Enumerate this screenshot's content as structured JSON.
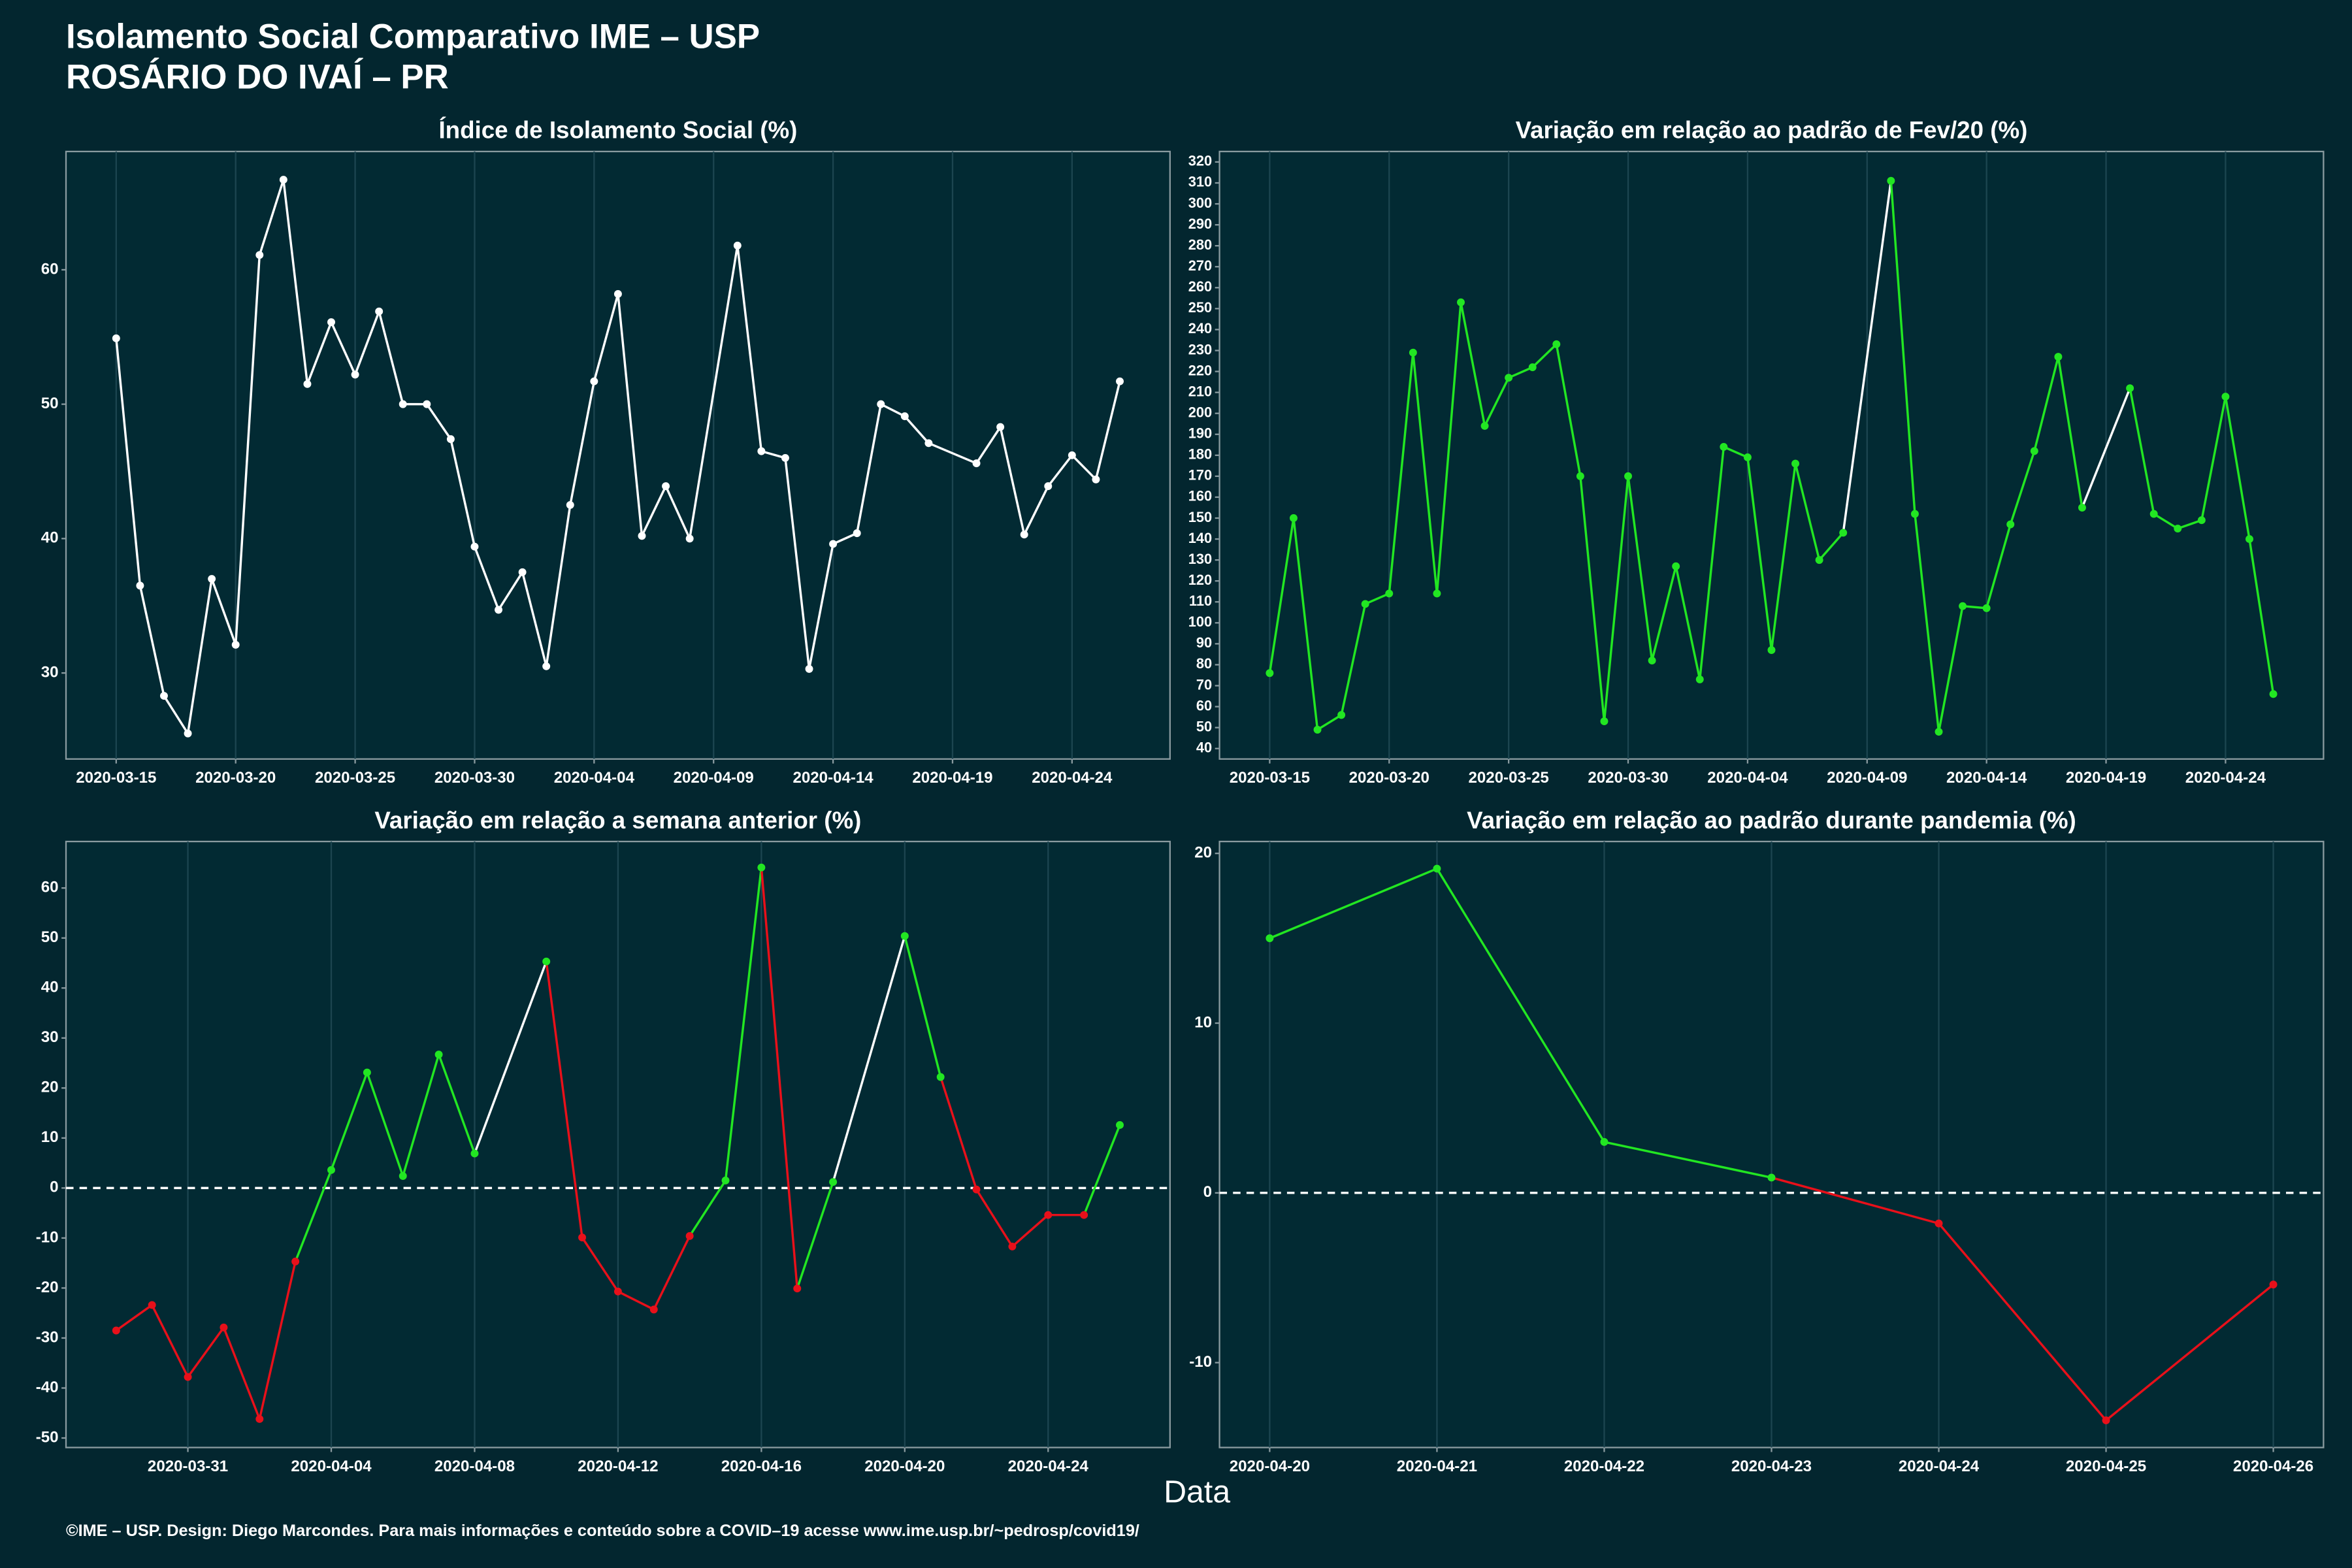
{
  "title": "Isolamento Social Comparativo IME – USP",
  "subtitle": "ROSÁRIO DO IVAÍ – PR",
  "x_label": "Data",
  "footer": "©IME – USP. Design: Diego Marcondes. Para mais informações e conteúdo sobre a COVID–19 acesse www.ime.usp.br/~pedrosp/covid19/",
  "chart_data": [
    {
      "type": "line",
      "title": "Índice de Isolamento Social (%)",
      "color": "#ffffff",
      "x": [
        "2020-03-15",
        "2020-03-16",
        "2020-03-17",
        "2020-03-18",
        "2020-03-19",
        "2020-03-20",
        "2020-03-21",
        "2020-03-22",
        "2020-03-23",
        "2020-03-24",
        "2020-03-25",
        "2020-03-26",
        "2020-03-27",
        "2020-03-28",
        "2020-03-29",
        "2020-03-30",
        "2020-03-31",
        "2020-04-01",
        "2020-04-02",
        "2020-04-03",
        "2020-04-04",
        "2020-04-05",
        "2020-04-06",
        "2020-04-07",
        "2020-04-08",
        "2020-04-10",
        "2020-04-11",
        "2020-04-12",
        "2020-04-13",
        "2020-04-14",
        "2020-04-15",
        "2020-04-16",
        "2020-04-17",
        "2020-04-18",
        "2020-04-20",
        "2020-04-21",
        "2020-04-22",
        "2020-04-23",
        "2020-04-24",
        "2020-04-25",
        "2020-04-26"
      ],
      "values": [
        54.9,
        36.5,
        28.3,
        25.5,
        37.0,
        32.1,
        61.1,
        66.7,
        51.5,
        56.1,
        52.2,
        56.9,
        50.0,
        50.0,
        47.4,
        39.4,
        34.7,
        37.5,
        30.5,
        42.5,
        51.7,
        58.2,
        40.2,
        43.9,
        40.0,
        61.8,
        46.5,
        46.0,
        30.3,
        39.6,
        40.4,
        50.0,
        49.1,
        47.1,
        45.6,
        48.3,
        40.3,
        43.9,
        46.2,
        44.4,
        51.7
      ],
      "ylim": [
        23.6,
        68.8
      ],
      "yticks": [
        30,
        40,
        50,
        60
      ],
      "xticks": [
        "2020-03-15",
        "2020-03-20",
        "2020-03-25",
        "2020-03-30",
        "2020-04-04",
        "2020-04-09",
        "2020-04-14",
        "2020-04-19",
        "2020-04-24"
      ]
    },
    {
      "type": "line",
      "title": "Variação em relação ao padrão de Fev/20 (%)",
      "color": "#22e622",
      "x": [
        "2020-03-15",
        "2020-03-16",
        "2020-03-17",
        "2020-03-18",
        "2020-03-19",
        "2020-03-20",
        "2020-03-21",
        "2020-03-22",
        "2020-03-23",
        "2020-03-24",
        "2020-03-25",
        "2020-03-26",
        "2020-03-27",
        "2020-03-28",
        "2020-03-29",
        "2020-03-30",
        "2020-03-31",
        "2020-04-01",
        "2020-04-02",
        "2020-04-03",
        "2020-04-04",
        "2020-04-05",
        "2020-04-06",
        "2020-04-07",
        "2020-04-08",
        "2020-04-10",
        "2020-04-11",
        "2020-04-12",
        "2020-04-13",
        "2020-04-14",
        "2020-04-15",
        "2020-04-16",
        "2020-04-17",
        "2020-04-18",
        "2020-04-20",
        "2020-04-21",
        "2020-04-22",
        "2020-04-23",
        "2020-04-24",
        "2020-04-25",
        "2020-04-26"
      ],
      "values": [
        76,
        150,
        49,
        56,
        109,
        114,
        229,
        114,
        253,
        194,
        217,
        222,
        233,
        170,
        53,
        170,
        82,
        127,
        73,
        184,
        179,
        87,
        176,
        130,
        143,
        311,
        152,
        48,
        108,
        107,
        147,
        182,
        227,
        155,
        212,
        152,
        145,
        149,
        208,
        140,
        66
      ],
      "segment_colors": [
        "#22e622",
        "#22e622",
        "#22e622",
        "#22e622",
        "#22e622",
        "#22e622",
        "#22e622",
        "#22e622",
        "#22e622",
        "#22e622",
        "#22e622",
        "#22e622",
        "#22e622",
        "#22e622",
        "#22e622",
        "#22e622",
        "#22e622",
        "#22e622",
        "#22e622",
        "#22e622",
        "#22e622",
        "#22e622",
        "#22e622",
        "#22e622",
        "#ffffff",
        "#22e622",
        "#22e622",
        "#22e622",
        "#22e622",
        "#22e622",
        "#22e622",
        "#22e622",
        "#22e622",
        "#ffffff",
        "#22e622",
        "#22e622",
        "#22e622",
        "#22e622",
        "#22e622",
        "#22e622"
      ],
      "ylim": [
        35,
        325
      ],
      "yticks": [
        40,
        50,
        60,
        70,
        80,
        90,
        100,
        110,
        120,
        130,
        140,
        150,
        160,
        170,
        180,
        190,
        200,
        210,
        220,
        230,
        240,
        250,
        260,
        270,
        280,
        290,
        300,
        310,
        320
      ],
      "xticks": [
        "2020-03-15",
        "2020-03-20",
        "2020-03-25",
        "2020-03-30",
        "2020-04-04",
        "2020-04-09",
        "2020-04-14",
        "2020-04-19",
        "2020-04-24"
      ]
    },
    {
      "type": "line",
      "title": "Variação em relação a semana anterior (%)",
      "x": [
        "2020-03-29",
        "2020-03-30",
        "2020-03-31",
        "2020-04-01",
        "2020-04-02",
        "2020-04-03",
        "2020-04-04",
        "2020-04-05",
        "2020-04-06",
        "2020-04-07",
        "2020-04-08",
        "2020-04-10",
        "2020-04-11",
        "2020-04-12",
        "2020-04-13",
        "2020-04-14",
        "2020-04-15",
        "2020-04-16",
        "2020-04-17",
        "2020-04-18",
        "2020-04-20",
        "2020-04-21",
        "2020-04-22",
        "2020-04-23",
        "2020-04-24",
        "2020-04-25",
        "2020-04-26"
      ],
      "values": [
        -28.5,
        -23.4,
        -37.8,
        -27.9,
        -46.2,
        -14.7,
        3.6,
        23.1,
        2.4,
        26.7,
        6.9,
        45.3,
        -9.9,
        -20.7,
        -24.3,
        -9.6,
        1.5,
        64.1,
        -20.1,
        1.2,
        50.4,
        22.2,
        -0.3,
        -11.7,
        -5.4,
        -5.4,
        12.6
      ],
      "point_colors": [
        "#e8101a",
        "#e8101a",
        "#e8101a",
        "#e8101a",
        "#e8101a",
        "#e8101a",
        "#22e622",
        "#22e622",
        "#22e622",
        "#22e622",
        "#22e622",
        "#22e622",
        "#e8101a",
        "#e8101a",
        "#e8101a",
        "#e8101a",
        "#22e622",
        "#22e622",
        "#e8101a",
        "#22e622",
        "#22e622",
        "#22e622",
        "#e8101a",
        "#e8101a",
        "#e8101a",
        "#e8101a",
        "#22e622"
      ],
      "segment_colors": [
        "#e8101a",
        "#e8101a",
        "#e8101a",
        "#e8101a",
        "#e8101a",
        "#22e622",
        "#22e622",
        "#22e622",
        "#22e622",
        "#22e622",
        "#ffffff",
        "#e8101a",
        "#e8101a",
        "#e8101a",
        "#e8101a",
        "#22e622",
        "#22e622",
        "#e8101a",
        "#22e622",
        "#ffffff",
        "#22e622",
        "#e8101a",
        "#e8101a",
        "#e8101a",
        "#e8101a",
        "#22e622"
      ],
      "hline": 0,
      "ylim": [
        -51.9,
        69.3
      ],
      "yticks": [
        -50,
        -40,
        -30,
        -20,
        -10,
        0,
        10,
        20,
        30,
        40,
        50,
        60
      ],
      "xticks": [
        "2020-03-31",
        "2020-04-04",
        "2020-04-08",
        "2020-04-12",
        "2020-04-16",
        "2020-04-20",
        "2020-04-24"
      ]
    },
    {
      "type": "line",
      "title": "Variação em relação ao padrão durante pandemia (%)",
      "x": [
        "2020-04-20",
        "2020-04-21",
        "2020-04-22",
        "2020-04-23",
        "2020-04-24",
        "2020-04-25",
        "2020-04-26"
      ],
      "values": [
        15.0,
        19.1,
        3.0,
        0.9,
        -1.8,
        -13.4,
        -5.4
      ],
      "point_colors": [
        "#22e622",
        "#22e622",
        "#22e622",
        "#22e622",
        "#e8101a",
        "#e8101a",
        "#e8101a"
      ],
      "segment_colors": [
        "#22e622",
        "#22e622",
        "#22e622",
        "#e8101a",
        "#e8101a",
        "#e8101a"
      ],
      "hline": 0,
      "ylim": [
        -15.0,
        20.7
      ],
      "yticks": [
        -10,
        0,
        10,
        20
      ],
      "xticks": [
        "2020-04-20",
        "2020-04-21",
        "2020-04-22",
        "2020-04-23",
        "2020-04-24",
        "2020-04-25",
        "2020-04-26"
      ]
    }
  ]
}
